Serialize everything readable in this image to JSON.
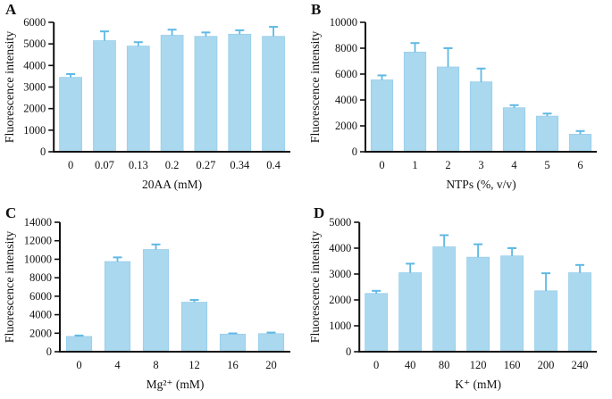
{
  "figure": {
    "background": "#ffffff"
  },
  "colors": {
    "bar_fill": "#a9d8ef",
    "bar_edge": "#97cdea",
    "error_bar": "#5fb9e4",
    "axis": "#111111",
    "text": "#111111"
  },
  "chart_data": [
    {
      "panel": "A",
      "type": "bar",
      "categories": [
        "0",
        "0.07",
        "0.13",
        "0.2",
        "0.27",
        "0.34",
        "0.4"
      ],
      "values": [
        3450,
        5150,
        4900,
        5400,
        5350,
        5450,
        5350
      ],
      "errors": [
        150,
        430,
        180,
        260,
        180,
        180,
        440
      ],
      "title": "",
      "xlabel": "20AA (mM)",
      "ylabel": "Fluorescence intensity",
      "ylim": [
        0,
        6000
      ],
      "yticks": [
        0,
        1000,
        2000,
        3000,
        4000,
        5000,
        6000
      ],
      "grid": false,
      "legend": "none"
    },
    {
      "panel": "B",
      "type": "bar",
      "categories": [
        "0",
        "1",
        "2",
        "3",
        "4",
        "5",
        "6"
      ],
      "values": [
        5550,
        7700,
        6550,
        5400,
        3400,
        2750,
        1350
      ],
      "errors": [
        350,
        700,
        1450,
        1030,
        200,
        200,
        250
      ],
      "title": "",
      "xlabel": "NTPs  (%, v/v)",
      "ylabel": "Fluorescence intensity",
      "ylim": [
        0,
        10000
      ],
      "yticks": [
        0,
        2000,
        4000,
        6000,
        8000,
        10000
      ],
      "grid": false,
      "legend": "none"
    },
    {
      "panel": "C",
      "type": "bar",
      "categories": [
        "0",
        "4",
        "8",
        "12",
        "16",
        "20"
      ],
      "values": [
        1650,
        9750,
        11050,
        5350,
        1900,
        1950
      ],
      "errors": [
        100,
        450,
        550,
        250,
        80,
        120
      ],
      "title": "",
      "xlabel": "Mg²⁺  (mM)",
      "ylabel": "Fluorescence intensity",
      "ylim": [
        0,
        14000
      ],
      "yticks": [
        0,
        2000,
        4000,
        6000,
        8000,
        10000,
        12000,
        14000
      ],
      "grid": false,
      "legend": "none"
    },
    {
      "panel": "D",
      "type": "bar",
      "categories": [
        "0",
        "40",
        "80",
        "120",
        "160",
        "200",
        "240"
      ],
      "values": [
        2250,
        3050,
        4050,
        3650,
        3700,
        2350,
        3050
      ],
      "errors": [
        100,
        350,
        450,
        500,
        300,
        680,
        300
      ],
      "title": "",
      "xlabel": "K⁺  (mM)",
      "ylabel": "Fluorescence intensity",
      "ylim": [
        0,
        5000
      ],
      "yticks": [
        0,
        1000,
        2000,
        3000,
        4000,
        5000
      ],
      "grid": false,
      "legend": "none"
    }
  ]
}
